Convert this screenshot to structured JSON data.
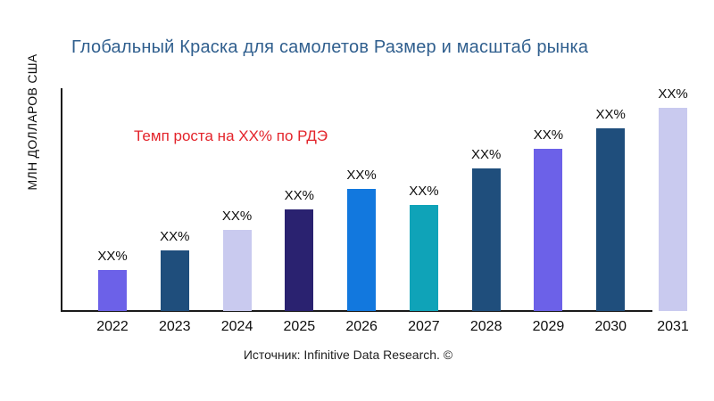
{
  "chart_data": {
    "type": "bar",
    "title": "Глобальный Краска для самолетов Размер и масштаб рынка",
    "ylabel": "МЛН ДОЛЛАРОВ США",
    "xlabel": "",
    "annotation": {
      "text": "Темп роста на XX% по РДЭ",
      "color": "#E3242B"
    },
    "source": "Источник: Infinitive Data Research. ©",
    "categories": [
      "2022",
      "2023",
      "2024",
      "2025",
      "2026",
      "2027",
      "2028",
      "2029",
      "2030",
      "2031"
    ],
    "value_labels": [
      "XX%",
      "XX%",
      "XX%",
      "XX%",
      "XX%",
      "XX%",
      "XX%",
      "XX%",
      "XX%",
      "XX%"
    ],
    "values_relative": [
      0.2,
      0.3,
      0.4,
      0.5,
      0.6,
      0.52,
      0.7,
      0.8,
      0.9,
      1.0
    ],
    "bar_colors": [
      "#6C61E8",
      "#1F4E7C",
      "#C9CAEF",
      "#2A2270",
      "#1278DE",
      "#0FA3B8",
      "#1F4E7C",
      "#6C61E8",
      "#1F4E7C",
      "#C9CAEF"
    ],
    "colors": {
      "title": "#305F8E",
      "annotation": "#E3242B",
      "axis": "#1a1a1a",
      "labels": "#0d0d0d"
    },
    "grid": false,
    "legend": false
  }
}
